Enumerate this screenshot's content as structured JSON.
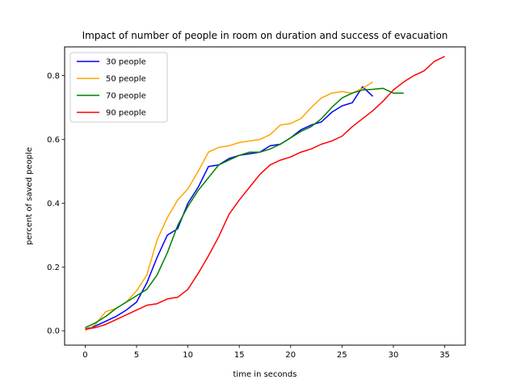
{
  "chart_data": {
    "type": "line",
    "title": "Impact of number of people in room on duration and success of evacuation",
    "xlabel": "time in seconds",
    "ylabel": "percent of saved people",
    "xlim": [
      -2,
      37
    ],
    "ylim": [
      -0.045,
      0.89
    ],
    "xticks": [
      0,
      5,
      10,
      15,
      20,
      25,
      30,
      35
    ],
    "yticks": [
      0.0,
      0.2,
      0.4,
      0.6,
      0.8
    ],
    "ytick_labels": [
      "0.0",
      "0.2",
      "0.4",
      "0.6",
      "0.8"
    ],
    "grid": false,
    "legend_position": "top-left",
    "series": [
      {
        "name": "30 people",
        "color": "#0000ff",
        "x": [
          0,
          1,
          2,
          3,
          4,
          5,
          6,
          7,
          8,
          9,
          10,
          11,
          12,
          13,
          14,
          15,
          16,
          17,
          18,
          19,
          20,
          21,
          22,
          23,
          24,
          25,
          26,
          27,
          28
        ],
        "y": [
          0.005,
          0.015,
          0.03,
          0.045,
          0.065,
          0.09,
          0.15,
          0.23,
          0.3,
          0.32,
          0.4,
          0.45,
          0.515,
          0.52,
          0.54,
          0.55,
          0.555,
          0.56,
          0.58,
          0.585,
          0.605,
          0.63,
          0.645,
          0.655,
          0.685,
          0.705,
          0.715,
          0.765,
          0.735
        ]
      },
      {
        "name": "50 people",
        "color": "#ffa500",
        "x": [
          0,
          1,
          2,
          3,
          4,
          5,
          6,
          7,
          8,
          9,
          10,
          11,
          12,
          13,
          14,
          15,
          16,
          17,
          18,
          19,
          20,
          21,
          22,
          23,
          24,
          25,
          26,
          27,
          28
        ],
        "y": [
          0.0,
          0.02,
          0.06,
          0.07,
          0.09,
          0.125,
          0.175,
          0.285,
          0.355,
          0.41,
          0.445,
          0.5,
          0.56,
          0.575,
          0.58,
          0.59,
          0.595,
          0.6,
          0.615,
          0.645,
          0.65,
          0.665,
          0.7,
          0.73,
          0.745,
          0.75,
          0.745,
          0.76,
          0.78
        ]
      },
      {
        "name": "70 people",
        "color": "#008000",
        "x": [
          0,
          1,
          2,
          3,
          4,
          5,
          6,
          7,
          8,
          9,
          10,
          11,
          12,
          13,
          14,
          15,
          16,
          17,
          18,
          19,
          20,
          21,
          22,
          23,
          24,
          25,
          26,
          27,
          28,
          29,
          30,
          31
        ],
        "y": [
          0.01,
          0.025,
          0.045,
          0.07,
          0.09,
          0.11,
          0.13,
          0.175,
          0.245,
          0.33,
          0.39,
          0.44,
          0.48,
          0.52,
          0.535,
          0.55,
          0.56,
          0.56,
          0.57,
          0.585,
          0.605,
          0.625,
          0.64,
          0.665,
          0.7,
          0.73,
          0.745,
          0.755,
          0.757,
          0.76,
          0.745,
          0.745
        ]
      },
      {
        "name": "90 people",
        "color": "#ff0000",
        "x": [
          0,
          1,
          2,
          3,
          4,
          5,
          6,
          7,
          8,
          9,
          10,
          11,
          12,
          13,
          14,
          15,
          16,
          17,
          18,
          19,
          20,
          21,
          22,
          23,
          24,
          25,
          26,
          27,
          28,
          29,
          30,
          31,
          32,
          33,
          34,
          35
        ],
        "y": [
          0.005,
          0.01,
          0.02,
          0.035,
          0.05,
          0.065,
          0.08,
          0.085,
          0.1,
          0.105,
          0.13,
          0.18,
          0.235,
          0.295,
          0.365,
          0.41,
          0.45,
          0.49,
          0.52,
          0.535,
          0.545,
          0.56,
          0.57,
          0.585,
          0.595,
          0.61,
          0.64,
          0.665,
          0.69,
          0.72,
          0.755,
          0.78,
          0.8,
          0.815,
          0.845,
          0.86
        ]
      }
    ]
  }
}
